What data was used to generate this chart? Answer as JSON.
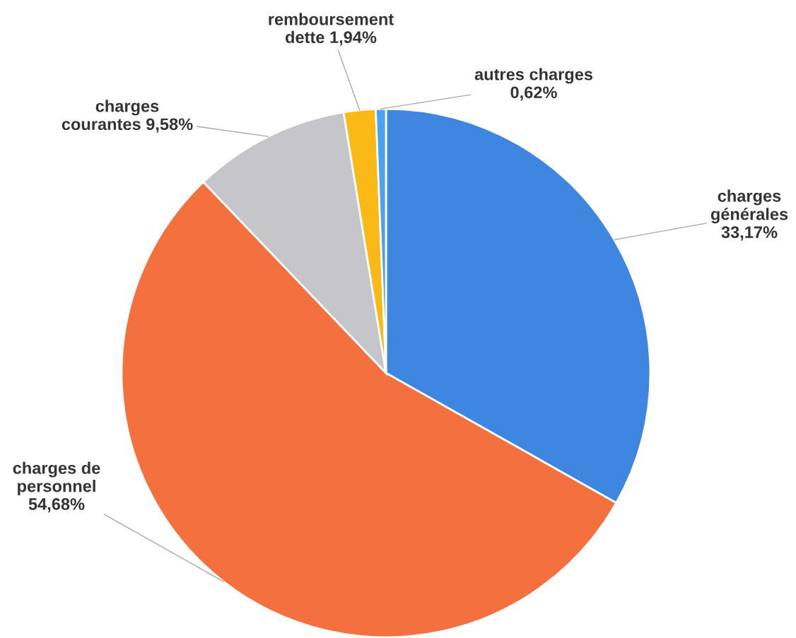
{
  "chart_data": {
    "type": "pie",
    "categories": [
      "charges\ngénérales",
      "charges de\npersonnel",
      "charges\ncourantes",
      "remboursement\ndette",
      "autres charges"
    ],
    "values": [
      33.17,
      54.68,
      9.58,
      1.94,
      0.62
    ],
    "value_labels": [
      "33,17%",
      "54,68%",
      "9,58%",
      "1,94%",
      "0,62%"
    ],
    "colors": [
      "#3f86e0",
      "#f4703f",
      "#c6c6ca",
      "#fbb917",
      "#4aa3f0"
    ],
    "legend": false
  }
}
